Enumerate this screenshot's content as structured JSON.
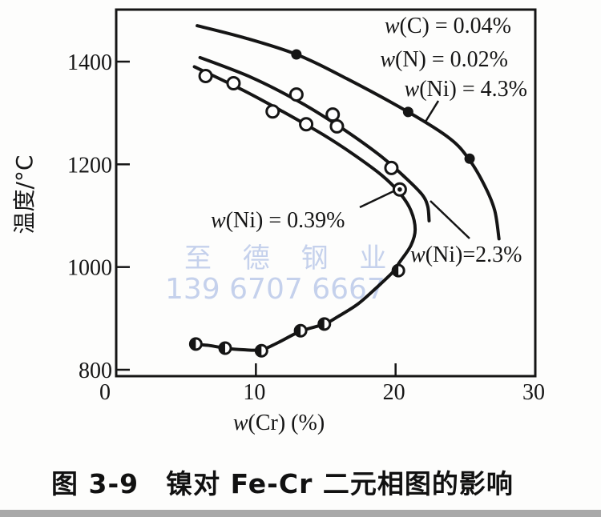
{
  "caption": "图 3-9　镍对 Fe-Cr 二元相图的影响",
  "watermark": {
    "line1": "至 德 钢 业",
    "line2": "139 6707 6667",
    "color": "#c5d1ec"
  },
  "colors": {
    "ink": "#151515",
    "page_edge": "#a9a9a9"
  },
  "chart_data": {
    "type": "line",
    "title": "图 3-9 镍对 Fe-Cr 二元相图的影响",
    "xlabel": {
      "sym": "w",
      "rest": "(Cr)  (%)"
    },
    "ylabel": "温度/°C",
    "xlim": [
      0,
      30
    ],
    "ylim": [
      780,
      1505
    ],
    "xticks": [
      0,
      10,
      20,
      30
    ],
    "yticks": [
      800,
      1000,
      1200,
      1400
    ],
    "grid": false,
    "legend": false,
    "series": [
      {
        "name": "gamma-loop w(Ni)=0.39%",
        "points": [
          [
            5.6,
            1390
          ],
          [
            9.1,
            1344
          ],
          [
            11.9,
            1303
          ],
          [
            14.8,
            1258
          ],
          [
            17.0,
            1219
          ],
          [
            19.0,
            1179
          ],
          [
            20.3,
            1144
          ],
          [
            21.1,
            1110
          ],
          [
            21.4,
            1073
          ],
          [
            21.1,
            1042
          ],
          [
            20.3,
            1010
          ],
          [
            19.8,
            990
          ],
          [
            18.6,
            959
          ],
          [
            17.3,
            928
          ],
          [
            15.9,
            904
          ],
          [
            14.9,
            889
          ],
          [
            13.2,
            875
          ],
          [
            11.6,
            853
          ],
          [
            10.4,
            839
          ],
          [
            9.1,
            839
          ],
          [
            7.8,
            842
          ],
          [
            6.7,
            847
          ],
          [
            5.4,
            850
          ]
        ]
      },
      {
        "name": "boundary w(Ni)=2.3%",
        "points": [
          [
            6.0,
            1408
          ],
          [
            9.7,
            1369
          ],
          [
            13.1,
            1322
          ],
          [
            15.9,
            1275
          ],
          [
            18.8,
            1219
          ],
          [
            20.7,
            1174
          ],
          [
            21.9,
            1141
          ],
          [
            22.3,
            1118
          ],
          [
            22.4,
            1090
          ]
        ]
      },
      {
        "name": "boundary w(Ni)=4.3% (w(C)=0.04%, w(N)=0.02%)",
        "points": [
          [
            5.8,
            1470
          ],
          [
            9.1,
            1447
          ],
          [
            12.9,
            1414
          ],
          [
            16.5,
            1367
          ],
          [
            20.9,
            1302
          ],
          [
            23.9,
            1250
          ],
          [
            25.3,
            1208
          ],
          [
            26.4,
            1157
          ],
          [
            27.1,
            1110
          ],
          [
            27.4,
            1055
          ]
        ]
      }
    ],
    "scatter": [
      {
        "name": "open-circle measurements",
        "marker": "open-circle",
        "points": [
          [
            6.4,
            1372
          ],
          [
            8.4,
            1358
          ],
          [
            11.2,
            1303
          ],
          [
            12.9,
            1336
          ],
          [
            13.6,
            1278
          ],
          [
            15.5,
            1297
          ],
          [
            15.8,
            1274
          ],
          [
            19.7,
            1193
          ]
        ]
      },
      {
        "name": "dotted-circle measurement",
        "marker": "dotted-circle",
        "points": [
          [
            20.3,
            1151
          ]
        ]
      },
      {
        "name": "half-filled measurements (lower branch)",
        "marker": "half-filled-circle",
        "points": [
          [
            5.7,
            850
          ],
          [
            7.8,
            842
          ],
          [
            10.4,
            837
          ],
          [
            13.2,
            876
          ],
          [
            14.9,
            889
          ],
          [
            20.2,
            993
          ]
        ]
      },
      {
        "name": "filled measurements (4.3% Ni curve)",
        "marker": "filled-circle",
        "points": [
          [
            12.9,
            1414
          ],
          [
            20.9,
            1302
          ],
          [
            25.3,
            1211
          ]
        ]
      }
    ],
    "annotations": [
      {
        "sym": "w",
        "rest": "(C) = 0.04%"
      },
      {
        "sym": "w",
        "rest": "(N) = 0.02%"
      },
      {
        "sym": "w",
        "rest": "(Ni) = 4.3%"
      },
      {
        "sym": "w",
        "rest": "(Ni) = 0.39%"
      },
      {
        "sym": "w",
        "rest": "(Ni)=2.3%"
      }
    ]
  }
}
